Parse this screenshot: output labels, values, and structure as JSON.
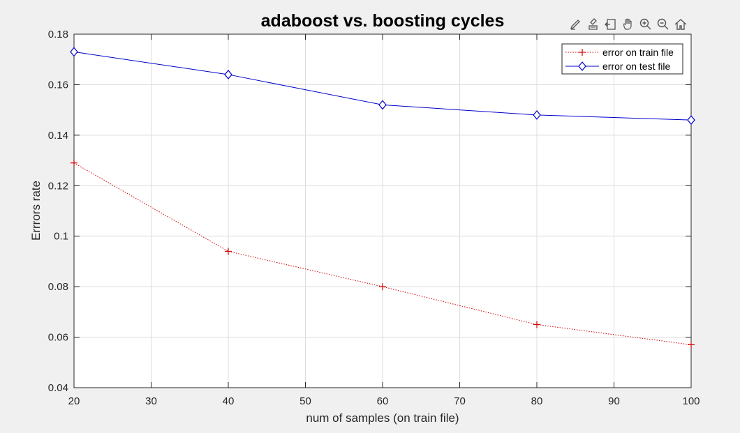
{
  "toolbar": {
    "icons": [
      "brush-icon",
      "data-tips-icon",
      "export-icon",
      "pan-hand-icon",
      "zoom-in-icon",
      "zoom-out-icon",
      "home-icon"
    ]
  },
  "chart_data": {
    "type": "line",
    "title": "adaboost vs. boosting cycles",
    "xlabel": "num of samples (on train file)",
    "ylabel": "Errrors rate",
    "x": [
      20,
      40,
      60,
      80,
      100
    ],
    "xlim": [
      20,
      100
    ],
    "ylim": [
      0.04,
      0.18
    ],
    "xticks": [
      20,
      30,
      40,
      50,
      60,
      70,
      80,
      90,
      100
    ],
    "xtick_labels": [
      "20",
      "30",
      "40",
      "50",
      "60",
      "70",
      "80",
      "90",
      "100"
    ],
    "yticks": [
      0.04,
      0.06,
      0.08,
      0.1,
      0.12,
      0.14,
      0.16,
      0.18
    ],
    "ytick_labels": [
      "0.04",
      "0.06",
      "0.08",
      "0.1",
      "0.12",
      "0.14",
      "0.16",
      "0.18"
    ],
    "grid": true,
    "legend_position": "top-right",
    "series": [
      {
        "name": "error on train file",
        "values": [
          0.129,
          0.094,
          0.08,
          0.065,
          0.057
        ],
        "color": "#cc0000",
        "line_style": "dotted",
        "marker": "plus"
      },
      {
        "name": "error on test file",
        "values": [
          0.173,
          0.164,
          0.152,
          0.148,
          0.146
        ],
        "color": "#0000cc",
        "line_style": "solid",
        "marker": "diamond"
      }
    ]
  }
}
